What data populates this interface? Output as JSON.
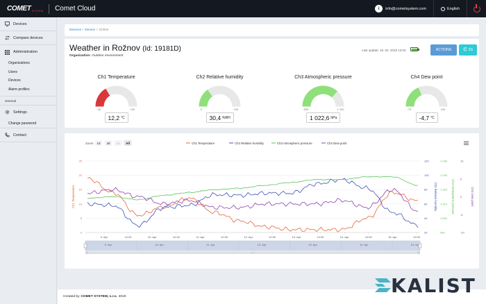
{
  "topbar": {
    "logo_text": "COMET",
    "logo_sub": "SYSTEM",
    "brand": "Comet Cloud",
    "user_initial": "i",
    "user_email": "info@cometsystem.com",
    "language": "English"
  },
  "sidebar": {
    "items": [
      {
        "label": "Devices",
        "icon": "devices-icon"
      },
      {
        "label": "Compare devices",
        "icon": "compare-icon"
      },
      {
        "label": "Administration",
        "icon": "grid-icon"
      }
    ],
    "admin_sub": [
      "Organizations",
      "Users",
      "Devices",
      "Alarm profiles"
    ],
    "section_general": "General",
    "settings": {
      "label": "Settings",
      "icon": "gear-icon"
    },
    "change_password": "Change password",
    "contact": {
      "label": "Contact",
      "icon": "phone-icon"
    }
  },
  "breadcrumb": {
    "items": [
      "Devices",
      "Device"
    ],
    "current": "Online",
    "sep": "/"
  },
  "device": {
    "title": "Weather in Rožnov",
    "id_label": "(Id: 19181D)",
    "org_label": "Organization:",
    "org_value": "Outdoor environment",
    "last_update": "Last update: 15. 04. 2019 13:03",
    "battery_level": 1.0,
    "actions_label": "ACTIONS",
    "share_label": "5S"
  },
  "gauges": [
    {
      "title": "Ch1 Temperature",
      "min": "-30",
      "max": "100",
      "value": "12,2",
      "unit": "°C",
      "fraction": 0.33,
      "color": "#d9373a"
    },
    {
      "title": "Ch2 Relative humidity",
      "min": "0",
      "max": "100",
      "value": "30,4",
      "unit": "%RH",
      "fraction": 0.3,
      "color": "#8fe07a"
    },
    {
      "title": "Ch3 Atmospheric pressure",
      "min": "800",
      "max": "1 100",
      "value": "1 022,6",
      "unit": "hPa",
      "fraction": 0.74,
      "color": "#8fe07a"
    },
    {
      "title": "Ch4 Dew point",
      "min": "-70",
      "max": "105",
      "value": "-4,7",
      "unit": "°C",
      "fraction": 0.37,
      "color": "#8fe07a"
    }
  ],
  "chart": {
    "zoom_label": "Zoom",
    "zoom_options": [
      "1d",
      "3d",
      "1w",
      "All"
    ],
    "zoom_selected": "All",
    "legend": [
      {
        "name": "Ch1 Temperature",
        "color": "#e8643a"
      },
      {
        "name": "Ch2 Relative humidity",
        "color": "#3f51b5"
      },
      {
        "name": "Ch3 Atmospheric pressure",
        "color": "#5bc25b"
      },
      {
        "name": "Ch4 Dew point",
        "color": "#8e44ad"
      }
    ],
    "x_ticks": [
      "9. Apr",
      "12:00",
      "10. Apr",
      "12:00",
      "11. Apr",
      "12:00",
      "12. Apr",
      "12:00",
      "13. Apr",
      "12:00",
      "14. Apr",
      "12:00",
      "15. Apr",
      "12:00"
    ],
    "navigator_ticks": [
      "9. Apr",
      "10. Apr",
      "11. Apr",
      "12. Apr",
      "13. Apr",
      "14. Apr",
      "15. Apr"
    ],
    "y_left": {
      "label": "Ch1 Temperature",
      "ticks": [
        "25",
        "20",
        "15",
        "10",
        "5",
        "0"
      ],
      "color": "#e8643a"
    },
    "y_rh": {
      "label": "Ch2 Relative humidity",
      "ticks": [
        "120",
        "100",
        "80",
        "60",
        "40",
        "20"
      ],
      "color": "#3f51b5"
    },
    "y_p": {
      "label": "Ch3 Atmospheric pressure",
      "ticks": [
        "1 040",
        "1 030",
        "1 020",
        "1 010",
        "1 000",
        "990"
      ],
      "color": "#5bc25b"
    },
    "y_dp": {
      "label": "Ch4 Dew point",
      "ticks": [
        "10",
        "5",
        "0",
        "-5",
        "-10"
      ],
      "color": "#8e44ad"
    }
  },
  "chart_data": {
    "type": "line",
    "x": [
      "9. Apr 00:00",
      "9. Apr 12:00",
      "10. Apr 00:00",
      "10. Apr 12:00",
      "11. Apr 00:00",
      "11. Apr 12:00",
      "12. Apr 00:00",
      "12. Apr 12:00",
      "13. Apr 00:00",
      "13. Apr 12:00",
      "14. Apr 00:00",
      "14. Apr 12:00",
      "15. Apr 00:00",
      "15. Apr 12:00"
    ],
    "series": [
      {
        "name": "Ch1 Temperature",
        "axis": "left",
        "values": [
          19,
          14,
          6,
          9,
          12,
          7,
          4,
          2,
          1,
          1,
          1,
          5,
          14,
          11
        ]
      },
      {
        "name": "Ch2 Relative humidity",
        "axis": "rh",
        "values": [
          60,
          58,
          30,
          55,
          58,
          73,
          72,
          75,
          75,
          88,
          94,
          82,
          48,
          30
        ]
      },
      {
        "name": "Ch3 Atmospheric pressure",
        "axis": "pressure",
        "values": [
          1014,
          1015,
          1013,
          1016,
          1018,
          1020,
          1021,
          1023,
          1025,
          1027,
          1027,
          1029,
          1029,
          1023
        ]
      },
      {
        "name": "Ch4 Dew point",
        "axis": "dewpoint",
        "values": [
          1,
          2,
          0,
          -2,
          -1,
          -3,
          -3,
          -2,
          -2,
          -2,
          -1,
          -3,
          2,
          -4
        ]
      }
    ],
    "ylim_left": [
      0,
      25
    ],
    "ylim_rh": [
      20,
      120
    ],
    "ylim_pressure": [
      990,
      1040
    ],
    "ylim_dewpoint": [
      -10,
      10
    ],
    "legend_position": "top"
  },
  "footer": {
    "prefix": "Created by",
    "company": "COMET SYSTEM, s.r.o.",
    "year": "2019"
  },
  "watermark": {
    "text": "KALIST"
  }
}
